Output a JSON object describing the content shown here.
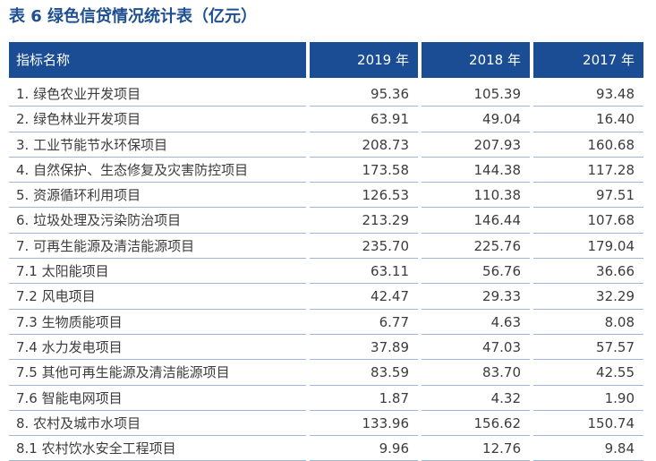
{
  "title": "表 6  绿色信贷情况统计表（亿元）",
  "table": {
    "headers": [
      "指标名称",
      "2019 年",
      "2018 年",
      "2017 年"
    ],
    "rows": [
      [
        "1. 绿色农业开发项目",
        "95.36",
        "105.39",
        "93.48"
      ],
      [
        "2. 绿色林业开发项目",
        "63.91",
        "49.04",
        "16.40"
      ],
      [
        "3. 工业节能节水环保项目",
        "208.73",
        "207.93",
        "160.68"
      ],
      [
        "4. 自然保护、生态修复及灾害防控项目",
        "173.58",
        "144.38",
        "117.28"
      ],
      [
        "5. 资源循环利用项目",
        "126.53",
        "110.38",
        "97.51"
      ],
      [
        "6. 垃圾处理及污染防治项目",
        "213.29",
        "146.44",
        "107.68"
      ],
      [
        "7. 可再生能源及清洁能源项目",
        "235.70",
        "225.76",
        "179.04"
      ],
      [
        "7.1 太阳能项目",
        "63.11",
        "56.76",
        "36.66"
      ],
      [
        "7.2 风电项目",
        "42.47",
        "29.33",
        "32.29"
      ],
      [
        "7.3 生物质能项目",
        "6.77",
        "4.63",
        "8.08"
      ],
      [
        "7.4 水力发电项目",
        "37.89",
        "47.03",
        "57.57"
      ],
      [
        "7.5 其他可再生能源及清洁能源项目",
        "83.59",
        "83.70",
        "42.55"
      ],
      [
        "7.6 智能电网项目",
        "1.87",
        "4.32",
        "1.90"
      ],
      [
        "8. 农村及城市水项目",
        "133.96",
        "156.62",
        "150.74"
      ],
      [
        "8.1 农村饮水安全工程项目",
        "9.96",
        "12.76",
        "9.84"
      ]
    ]
  },
  "colors": {
    "title": "#1d4f91",
    "header_bg": "#1a4d94",
    "header_text": "#ffffff",
    "row_border": "#9fb6d6",
    "body_text": "#3c3c3c"
  }
}
